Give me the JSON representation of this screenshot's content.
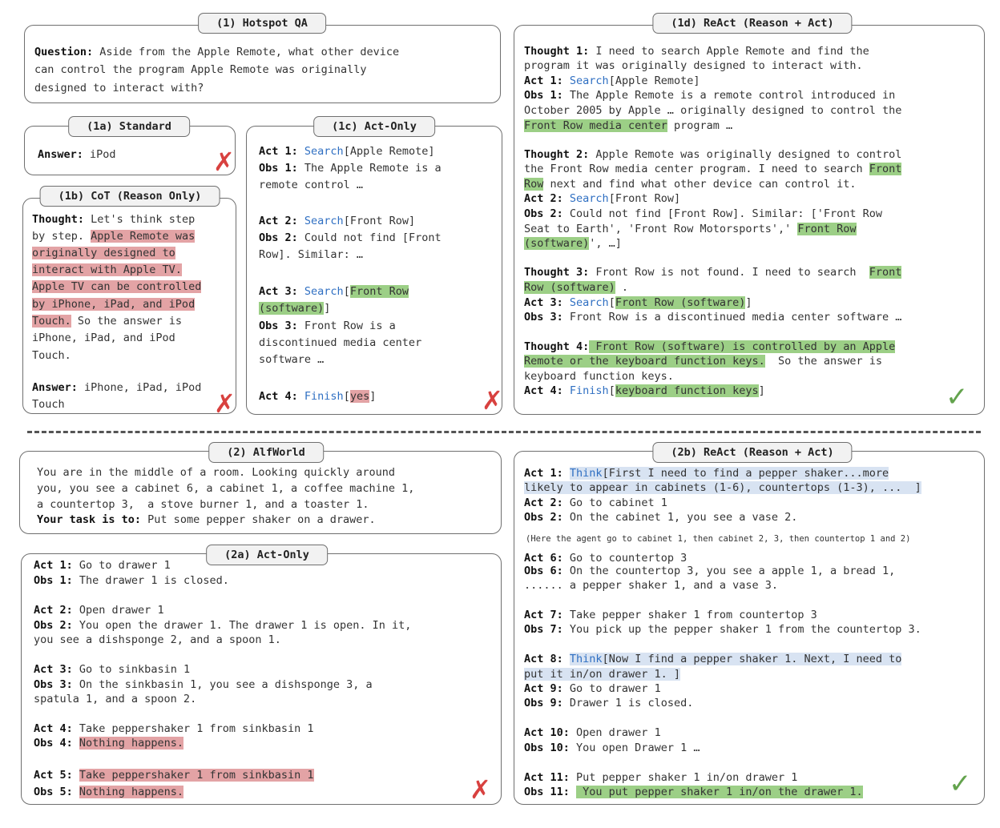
{
  "panel_1": {
    "title": "(1) Hotspot QA",
    "question_label": "Question:",
    "question_lines": [
      " Aside from the Apple Remote, what other device",
      "can control the program Apple Remote was originally",
      "designed to interact with?"
    ]
  },
  "panel_1a": {
    "title": "(1a) Standard",
    "answer_label": "Answer:",
    "answer_value": " iPod"
  },
  "panel_1b": {
    "title": "(1b) CoT (Reason Only)",
    "thought_label": "Thought:",
    "t1": " Let's think step",
    "t2": "by step. ",
    "h1": "Apple Remote was",
    "h2": "originally designed to",
    "h3": "interact with Apple TV.",
    "h4": "Apple TV can be controlled",
    "h5": "by iPhone, iPad, and iPod",
    "h6": "Touch.",
    "t3": " So the answer is",
    "t4": "iPhone, iPad, and iPod",
    "t5": "Touch.",
    "answer_label": "Answer:",
    "answer_line1": " iPhone, iPad, iPod",
    "answer_line2": "Touch"
  },
  "panel_1c": {
    "title": "(1c) Act-Only",
    "act1_label": "Act 1:",
    "act1_action": "Search",
    "act1_arg": "[Apple Remote]",
    "obs1_label": "Obs 1:",
    "obs1_line1": " The Apple Remote is a",
    "obs1_line2": "remote control …",
    "act2_label": "Act 2:",
    "act2_action": "Search",
    "act2_arg": "[Front Row]",
    "obs2_label": "Obs 2:",
    "obs2_line1": " Could not find [Front",
    "obs2_line2": "Row]. Similar: …",
    "act3_label": "Act 3:",
    "act3_action": "Search",
    "act3_open": "[",
    "act3_hl1": "Front Row",
    "act3_hl2": "(software)",
    "act3_close": "]",
    "obs3_label": "Obs 3:",
    "obs3_line1": " Front Row is a",
    "obs3_line2": "discontinued media center",
    "obs3_line3": "software …",
    "act4_label": "Act 4:",
    "act4_action": "Finish",
    "act4_open": "[",
    "act4_hl": "yes",
    "act4_close": "]"
  },
  "panel_1d": {
    "title": "(1d) ReAct (Reason + Act)",
    "th1_label": "Thought 1:",
    "th1_line1": " I need to search Apple Remote and find the",
    "th1_line2": "program it was originally designed to interact with.",
    "act1_label": "Act 1:",
    "act1_action": "Search",
    "act1_arg": "[Apple Remote]",
    "obs1_label": "Obs 1:",
    "obs1_line1": " The Apple Remote is a remote control introduced in",
    "obs1_line2": "October 2005 by Apple … originally designed to control the",
    "obs1_hl": "Front Row media center",
    "obs1_tail": " program …",
    "th2_label": "Thought 2:",
    "th2_line1": " Apple Remote was originally designed to control",
    "th2_line2": "the Front Row media center program. I need to search ",
    "th2_hl1": "Front",
    "th2_hl2": "Row",
    "th2_line3": " next and find what other device can control it.",
    "act2_label": "Act 2:",
    "act2_action": "Search",
    "act2_arg": "[Front Row]",
    "obs2_label": "Obs 2:",
    "obs2_line1": " Could not find [Front Row]. Similar: ['Front Row",
    "obs2_line2": "Seat to Earth', 'Front Row Motorsports',' ",
    "obs2_hl1": "Front Row",
    "obs2_hl2": "(software)",
    "obs2_tail": "', …]",
    "th3_label": "Thought 3:",
    "th3_line1": " Front Row is not found. I need to search  ",
    "th3_hl1": "Front",
    "th3_hl2": "Row (software)",
    "th3_tail": " .",
    "act3_label": "Act 3:",
    "act3_action": "Search",
    "act3_open": "[",
    "act3_hl": "Front Row (software)",
    "act3_close": "]",
    "obs3_label": "Obs 3:",
    "obs3_line1": " Front Row is a discontinued media center software …",
    "th4_label": "Thought 4:",
    "th4_hl1": " Front Row (software) is controlled by an Apple",
    "th4_hl2": "Remote or the keyboard function keys.",
    "th4_tail": "  So the answer is",
    "th4_line3": "keyboard function keys.",
    "act4_label": "Act 4:",
    "act4_action": "Finish",
    "act4_open": "[",
    "act4_hl": "keyboard function keys",
    "act4_close": "]"
  },
  "panel_2": {
    "title": "(2) AlfWorld",
    "line1": "You are in the middle of a room. Looking quickly around",
    "line2": "you, you see a cabinet 6, a cabinet 1, a coffee machine 1,",
    "line3": "a countertop 3,  a stove burner 1, and a toaster 1.",
    "task_label": "Your task is to:",
    "task_text": " Put some pepper shaker on a drawer."
  },
  "panel_2a": {
    "title": "(2a) Act-Only",
    "a1_label": "Act 1:",
    "a1_text": " Go to drawer 1",
    "o1_label": "Obs 1:",
    "o1_text": " The drawer 1 is closed.",
    "a2_label": "Act 2:",
    "a2_text": " Open drawer 1",
    "o2_label": "Obs 2:",
    "o2_line1": " You open the drawer 1. The drawer 1 is open. In it,",
    "o2_line2": "you see a dishsponge 2, and a spoon 1.",
    "a3_label": "Act 3:",
    "a3_text": " Go to sinkbasin 1",
    "o3_label": "Obs 3:",
    "o3_line1": " On the sinkbasin 1, you see a dishsponge 3, a",
    "o3_line2": "spatula 1, and a spoon 2.",
    "a4_label": "Act 4:",
    "a4_text": " Take peppershaker 1 from sinkbasin 1",
    "o4_label": "Obs 4:",
    "o4_hl": "Nothing happens.",
    "a5_label": "Act 5:",
    "a5_hl": "Take peppershaker 1 from sinkbasin 1",
    "o5_label": "Obs 5:",
    "o5_hl": "Nothing happens."
  },
  "panel_2b": {
    "title": "(2b) ReAct (Reason + Act)",
    "a1_label": "Act 1:",
    "a1_think": "Think",
    "a1_hl1": "[First I need to find a pepper shaker...more",
    "a1_hl2": "likely to appear in cabinets (1-6), countertops (1-3), ...  ]",
    "a2_label": "Act 2:",
    "a2_text": " Go to cabinet 1",
    "o2_label": "Obs 2:",
    "o2_text": " On the cabinet 1, you see a vase 2.",
    "note": "(Here the agent go to cabinet 1, then cabinet 2, 3, then countertop 1 and 2)",
    "a6_label": "Act 6:",
    "a6_text": " Go to countertop 3",
    "o6_label": "Obs 6:",
    "o6_line1": " On the countertop 3, you see a apple 1, a bread 1,",
    "o6_line2": "...... a pepper shaker 1, and a vase 3.",
    "a7_label": "Act 7:",
    "a7_text": " Take pepper shaker 1 from countertop 3",
    "o7_label": "Obs 7:",
    "o7_text": " You pick up the pepper shaker 1 from the countertop 3.",
    "a8_label": "Act 8:",
    "a8_think": "Think",
    "a8_hl1": "[Now I find a pepper shaker 1. Next, I need to",
    "a8_hl2": "put it in/on drawer 1. ]",
    "a9_label": "Act 9:",
    "a9_text": " Go to drawer 1",
    "o9_label": "Obs 9:",
    "o9_text": " Drawer 1 is closed.",
    "a10_label": "Act 10:",
    "a10_text": " Open drawer 1",
    "o10_label": "Obs 10:",
    "o10_text": " You open Drawer 1 …",
    "a11_label": "Act 11:",
    "a11_text": " Put pepper shaker 1 in/on drawer 1",
    "o11_label": "Obs 11:",
    "o11_hl": " You put pepper shaker 1 in/on the drawer 1."
  },
  "marks": {
    "cross": "✗",
    "check": "✓"
  }
}
